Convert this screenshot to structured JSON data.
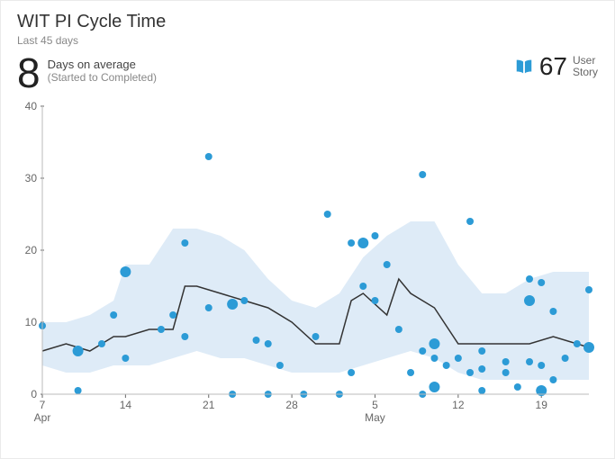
{
  "title": "WIT PI Cycle Time",
  "subtitle": "Last 45 days",
  "average_value": "8",
  "average_label_line1": "Days on average",
  "average_label_line2": "(Started to Completed)",
  "user_story_count": "67",
  "user_story_label_line1": "User",
  "user_story_label_line2": "Story",
  "chart": {
    "type": "scatter_with_line_and_band",
    "x_domain": [
      7,
      53
    ],
    "y_domain": [
      0,
      40
    ],
    "y_ticks": [
      0,
      10,
      20,
      30,
      40
    ],
    "x_ticks": [
      {
        "v": 7,
        "label": "7",
        "month": "Apr"
      },
      {
        "v": 14,
        "label": "14"
      },
      {
        "v": 21,
        "label": "21"
      },
      {
        "v": 28,
        "label": "28"
      },
      {
        "v": 35,
        "label": "5",
        "month": "May"
      },
      {
        "v": 42,
        "label": "12"
      },
      {
        "v": 49,
        "label": "19"
      }
    ],
    "colors": {
      "background": "#ffffff",
      "band_fill": "#deebf7",
      "line_stroke": "#333333",
      "point_fill": "#2c9bd6",
      "tick_color": "#666666",
      "grid_hide": true
    },
    "line_width": 1.5,
    "point_radius_small": 4,
    "point_radius_large": 6,
    "band": {
      "x": [
        7,
        9,
        11,
        13,
        14,
        16,
        18,
        20,
        22,
        24,
        26,
        28,
        30,
        32,
        34,
        36,
        38,
        40,
        42,
        44,
        46,
        48,
        50,
        52,
        53
      ],
      "upper": [
        10,
        10,
        11,
        13,
        18,
        18,
        23,
        23,
        22,
        20,
        16,
        13,
        12,
        14,
        19,
        22,
        24,
        24,
        18,
        14,
        14,
        16,
        17,
        17,
        17
      ],
      "lower": [
        4,
        3,
        3,
        4,
        4,
        4,
        5,
        6,
        5,
        5,
        4,
        3,
        3,
        3,
        4,
        5,
        6,
        5,
        3,
        2,
        2,
        2,
        2,
        2,
        2
      ]
    },
    "line": {
      "x": [
        7,
        9,
        11,
        13,
        14,
        16,
        18,
        19,
        20,
        22,
        24,
        26,
        28,
        30,
        32,
        33,
        34,
        36,
        37,
        38,
        40,
        42,
        44,
        46,
        48,
        50,
        52,
        53
      ],
      "y": [
        6,
        7,
        6,
        8,
        8,
        9,
        9,
        15,
        15,
        14,
        13,
        12,
        10,
        7,
        7,
        13,
        14,
        11,
        16,
        14,
        12,
        7,
        7,
        7,
        7,
        8,
        7,
        6.5
      ]
    },
    "points": [
      {
        "x": 7,
        "y": 9.5,
        "r": 4
      },
      {
        "x": 10,
        "y": 6,
        "r": 6
      },
      {
        "x": 10,
        "y": 0.5,
        "r": 4
      },
      {
        "x": 12,
        "y": 7,
        "r": 4
      },
      {
        "x": 13,
        "y": 11,
        "r": 4
      },
      {
        "x": 14,
        "y": 17,
        "r": 6
      },
      {
        "x": 14,
        "y": 5,
        "r": 4
      },
      {
        "x": 17,
        "y": 9,
        "r": 4
      },
      {
        "x": 18,
        "y": 11,
        "r": 4
      },
      {
        "x": 19,
        "y": 21,
        "r": 4
      },
      {
        "x": 19,
        "y": 8,
        "r": 4
      },
      {
        "x": 21,
        "y": 33,
        "r": 4
      },
      {
        "x": 21,
        "y": 12,
        "r": 4
      },
      {
        "x": 23,
        "y": 0,
        "r": 4
      },
      {
        "x": 23,
        "y": 12.5,
        "r": 6
      },
      {
        "x": 24,
        "y": 13,
        "r": 4
      },
      {
        "x": 25,
        "y": 7.5,
        "r": 4
      },
      {
        "x": 26,
        "y": 0,
        "r": 4
      },
      {
        "x": 26,
        "y": 7,
        "r": 4
      },
      {
        "x": 27,
        "y": 4,
        "r": 4
      },
      {
        "x": 29,
        "y": 0,
        "r": 4
      },
      {
        "x": 30,
        "y": 8,
        "r": 4
      },
      {
        "x": 31,
        "y": 25,
        "r": 4
      },
      {
        "x": 32,
        "y": 0,
        "r": 4
      },
      {
        "x": 33,
        "y": 3,
        "r": 4
      },
      {
        "x": 33,
        "y": 21,
        "r": 4
      },
      {
        "x": 34,
        "y": 21,
        "r": 6
      },
      {
        "x": 34,
        "y": 15,
        "r": 4
      },
      {
        "x": 35,
        "y": 13,
        "r": 4
      },
      {
        "x": 35,
        "y": 22,
        "r": 4
      },
      {
        "x": 36,
        "y": 18,
        "r": 4
      },
      {
        "x": 37,
        "y": 9,
        "r": 4
      },
      {
        "x": 38,
        "y": 3,
        "r": 4
      },
      {
        "x": 39,
        "y": 6,
        "r": 4
      },
      {
        "x": 39,
        "y": 0,
        "r": 4
      },
      {
        "x": 39,
        "y": 30.5,
        "r": 4
      },
      {
        "x": 40,
        "y": 5,
        "r": 4
      },
      {
        "x": 40,
        "y": 1,
        "r": 6
      },
      {
        "x": 40,
        "y": 7,
        "r": 6
      },
      {
        "x": 41,
        "y": 4,
        "r": 4
      },
      {
        "x": 42,
        "y": 5,
        "r": 4
      },
      {
        "x": 43,
        "y": 24,
        "r": 4
      },
      {
        "x": 43,
        "y": 3,
        "r": 4
      },
      {
        "x": 44,
        "y": 6,
        "r": 4
      },
      {
        "x": 44,
        "y": 3.5,
        "r": 4
      },
      {
        "x": 44,
        "y": 0.5,
        "r": 4
      },
      {
        "x": 46,
        "y": 3,
        "r": 4
      },
      {
        "x": 46,
        "y": 4.5,
        "r": 4
      },
      {
        "x": 47,
        "y": 1,
        "r": 4
      },
      {
        "x": 48,
        "y": 13,
        "r": 6
      },
      {
        "x": 48,
        "y": 16,
        "r": 4
      },
      {
        "x": 48,
        "y": 4.5,
        "r": 4
      },
      {
        "x": 49,
        "y": 0.5,
        "r": 6
      },
      {
        "x": 49,
        "y": 15.5,
        "r": 4
      },
      {
        "x": 49,
        "y": 4,
        "r": 4
      },
      {
        "x": 50,
        "y": 11.5,
        "r": 4
      },
      {
        "x": 50,
        "y": 2,
        "r": 4
      },
      {
        "x": 51,
        "y": 5,
        "r": 4
      },
      {
        "x": 52,
        "y": 7,
        "r": 4
      },
      {
        "x": 53,
        "y": 14.5,
        "r": 4
      },
      {
        "x": 53,
        "y": 6.5,
        "r": 6
      }
    ]
  }
}
